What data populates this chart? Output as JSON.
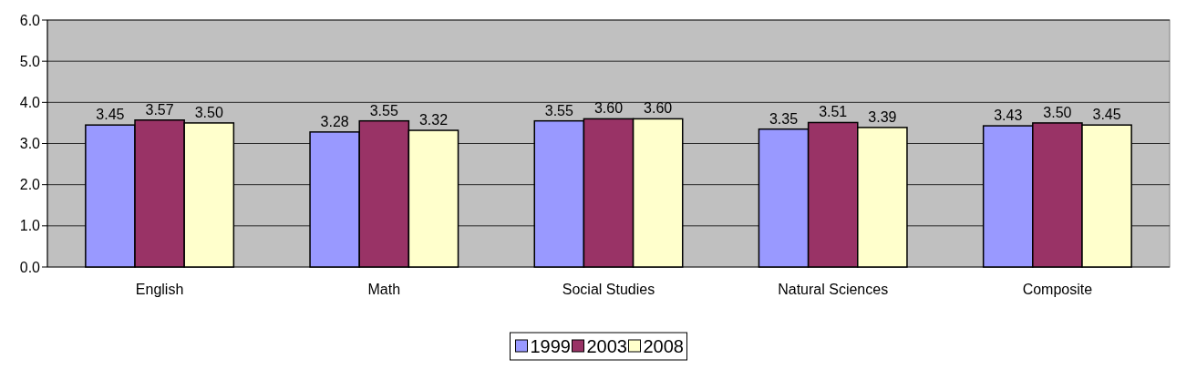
{
  "chart_data": {
    "type": "bar",
    "categories": [
      "English",
      "Math",
      "Social Studies",
      "Natural Sciences",
      "Composite"
    ],
    "series": [
      {
        "name": "1999",
        "color": "#9999ff",
        "values": [
          3.45,
          3.28,
          3.55,
          3.35,
          3.43
        ],
        "value_labels": [
          "3.45",
          "3.28",
          "3.55",
          "3.35",
          "3.43"
        ]
      },
      {
        "name": "2003",
        "color": "#993366",
        "values": [
          3.57,
          3.55,
          3.6,
          3.51,
          3.5
        ],
        "value_labels": [
          "3.57",
          "3.55",
          "3.60",
          "3.51",
          "3.50"
        ]
      },
      {
        "name": "2008",
        "color": "#ffffcc",
        "values": [
          3.5,
          3.32,
          3.6,
          3.39,
          3.45
        ],
        "value_labels": [
          "3.50",
          "3.32",
          "3.60",
          "3.39",
          "3.45"
        ]
      }
    ],
    "ylim": [
      0,
      6
    ],
    "yticks": [
      {
        "value": 0,
        "label": "0.0"
      },
      {
        "value": 1,
        "label": "1.0"
      },
      {
        "value": 2,
        "label": "2.0"
      },
      {
        "value": 3,
        "label": "3.0"
      },
      {
        "value": 4,
        "label": "4.0"
      },
      {
        "value": 5,
        "label": "5.0"
      },
      {
        "value": 6,
        "label": "6.0"
      }
    ],
    "grid": "y",
    "legend": "bottom"
  }
}
